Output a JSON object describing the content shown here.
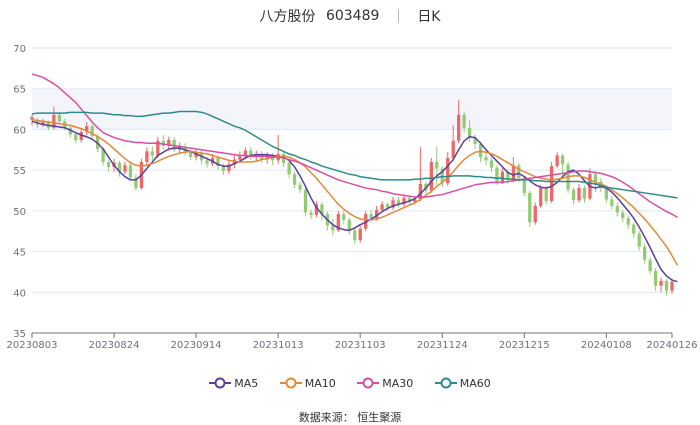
{
  "title": {
    "name": "八方股份",
    "code": "603489",
    "period": "日K"
  },
  "source": "数据来源：  恒生聚源",
  "legend": [
    {
      "key": "ma5",
      "label": "MA5",
      "color": "#5b3e9e"
    },
    {
      "key": "ma10",
      "label": "MA10",
      "color": "#e08a3c"
    },
    {
      "key": "ma30",
      "label": "MA30",
      "color": "#d94da6"
    },
    {
      "key": "ma60",
      "label": "MA60",
      "color": "#2e8b8b"
    }
  ],
  "colors": {
    "up": "#ee6666",
    "down": "#91cc75",
    "grid": "#e0e6f1",
    "band": "#f3f5fb",
    "axis": "#6e7079"
  },
  "chart_data": {
    "type": "candlestick",
    "x_tick_labels": [
      "20230803",
      "20230824",
      "20230914",
      "20231013",
      "20231103",
      "20231124",
      "20231215",
      "20240108",
      "20240126"
    ],
    "x_tick_index": [
      0,
      15,
      30,
      45,
      60,
      75,
      90,
      105,
      117
    ],
    "y_ticks": [
      35,
      40,
      45,
      50,
      55,
      60,
      65,
      70
    ],
    "ylim": [
      35,
      70
    ],
    "candles": [
      [
        61.2,
        61.5,
        60.5,
        61.8
      ],
      [
        61.0,
        60.6,
        60.2,
        61.4
      ],
      [
        60.6,
        60.9,
        60.3,
        61.3
      ],
      [
        60.9,
        60.2,
        59.9,
        61.1
      ],
      [
        60.2,
        61.8,
        60.0,
        62.8
      ],
      [
        61.8,
        61.0,
        60.6,
        62.2
      ],
      [
        61.0,
        60.2,
        59.9,
        61.3
      ],
      [
        60.2,
        59.4,
        59.0,
        60.5
      ],
      [
        59.4,
        58.7,
        58.3,
        59.6
      ],
      [
        58.7,
        59.7,
        58.4,
        60.1
      ],
      [
        59.7,
        60.4,
        59.3,
        60.9
      ],
      [
        60.4,
        59.2,
        58.8,
        60.6
      ],
      [
        59.2,
        57.6,
        57.2,
        59.4
      ],
      [
        57.6,
        56.0,
        55.6,
        57.8
      ],
      [
        56.0,
        55.4,
        54.8,
        56.2
      ],
      [
        55.4,
        55.9,
        54.8,
        56.4
      ],
      [
        55.9,
        54.8,
        54.2,
        56.1
      ],
      [
        54.8,
        55.6,
        54.5,
        56.0
      ],
      [
        55.6,
        54.1,
        53.9,
        56.1
      ],
      [
        54.1,
        52.8,
        52.5,
        54.5
      ],
      [
        52.8,
        56.0,
        52.6,
        56.4
      ],
      [
        56.0,
        57.3,
        55.6,
        57.8
      ],
      [
        57.3,
        56.8,
        56.2,
        57.9
      ],
      [
        56.8,
        58.6,
        56.5,
        59.1
      ],
      [
        58.6,
        58.0,
        57.5,
        59.3
      ],
      [
        58.0,
        58.7,
        57.4,
        59.1
      ],
      [
        58.7,
        57.5,
        57.2,
        59.0
      ],
      [
        57.5,
        57.9,
        57.0,
        58.4
      ],
      [
        57.9,
        57.2,
        56.8,
        58.3
      ],
      [
        57.2,
        56.6,
        56.2,
        57.6
      ],
      [
        56.6,
        57.1,
        56.2,
        57.5
      ],
      [
        57.1,
        56.2,
        55.7,
        57.4
      ],
      [
        56.2,
        55.8,
        55.3,
        56.6
      ],
      [
        55.8,
        56.5,
        55.5,
        57.0
      ],
      [
        56.5,
        55.5,
        55.0,
        56.8
      ],
      [
        55.5,
        54.9,
        54.4,
        55.8
      ],
      [
        54.9,
        55.7,
        54.5,
        56.2
      ],
      [
        55.7,
        56.3,
        55.2,
        56.8
      ],
      [
        56.3,
        56.7,
        55.9,
        57.3
      ],
      [
        56.7,
        57.4,
        56.3,
        57.8
      ],
      [
        57.4,
        56.6,
        56.2,
        57.8
      ],
      [
        56.6,
        57.0,
        56.1,
        57.4
      ],
      [
        57.0,
        56.3,
        55.9,
        57.3
      ],
      [
        56.3,
        56.8,
        55.8,
        57.2
      ],
      [
        56.8,
        56.2,
        55.6,
        57.1
      ],
      [
        56.2,
        57.0,
        55.8,
        59.3
      ],
      [
        57.0,
        55.9,
        55.4,
        57.3
      ],
      [
        55.9,
        54.5,
        54.0,
        56.1
      ],
      [
        54.5,
        53.2,
        52.8,
        54.8
      ],
      [
        53.2,
        52.6,
        52.2,
        53.6
      ],
      [
        52.6,
        49.8,
        49.4,
        52.9
      ],
      [
        49.8,
        49.5,
        49.0,
        50.2
      ],
      [
        49.5,
        50.8,
        49.2,
        51.2
      ],
      [
        50.8,
        49.6,
        48.8,
        51.1
      ],
      [
        49.6,
        48.2,
        47.6,
        49.9
      ],
      [
        48.2,
        47.6,
        47.0,
        49.0
      ],
      [
        47.6,
        49.6,
        47.4,
        50.0
      ],
      [
        49.6,
        48.9,
        48.4,
        50.0
      ],
      [
        48.9,
        47.6,
        47.1,
        49.2
      ],
      [
        47.6,
        46.4,
        45.9,
        48.0
      ],
      [
        46.4,
        47.8,
        46.1,
        48.2
      ],
      [
        47.8,
        49.6,
        47.5,
        50.0
      ],
      [
        49.6,
        49.1,
        48.6,
        50.1
      ],
      [
        49.1,
        50.1,
        48.8,
        50.6
      ],
      [
        50.1,
        50.8,
        49.8,
        51.2
      ],
      [
        50.8,
        50.4,
        50.0,
        51.0
      ],
      [
        50.4,
        51.3,
        50.1,
        51.7
      ],
      [
        51.3,
        50.8,
        50.4,
        51.7
      ],
      [
        50.8,
        51.6,
        50.5,
        52.0
      ],
      [
        51.6,
        51.1,
        50.8,
        52.0
      ],
      [
        51.1,
        51.4,
        50.8,
        51.7
      ],
      [
        51.4,
        53.3,
        51.2,
        57.8
      ],
      [
        53.3,
        52.5,
        52.1,
        53.6
      ],
      [
        52.5,
        56.0,
        52.2,
        56.5
      ],
      [
        56.0,
        55.2,
        53.0,
        57.9
      ],
      [
        55.2,
        53.4,
        52.9,
        55.5
      ],
      [
        53.4,
        56.5,
        53.1,
        57.2
      ],
      [
        56.5,
        58.6,
        56.1,
        60.5
      ],
      [
        58.6,
        61.8,
        58.3,
        63.6
      ],
      [
        61.8,
        60.2,
        59.6,
        62.2
      ],
      [
        60.2,
        59.0,
        58.5,
        61.2
      ],
      [
        59.0,
        58.2,
        57.6,
        59.4
      ],
      [
        58.2,
        56.6,
        56.0,
        58.5
      ],
      [
        56.6,
        56.2,
        55.6,
        57.2
      ],
      [
        56.2,
        55.3,
        54.8,
        56.5
      ],
      [
        55.3,
        53.6,
        53.2,
        55.6
      ],
      [
        53.6,
        54.8,
        53.3,
        55.2
      ],
      [
        54.8,
        53.8,
        53.3,
        55.1
      ],
      [
        53.8,
        55.6,
        53.5,
        56.6
      ],
      [
        55.6,
        54.0,
        53.5,
        55.9
      ],
      [
        54.0,
        52.2,
        51.8,
        54.3
      ],
      [
        52.2,
        48.6,
        48.0,
        52.5
      ],
      [
        48.6,
        50.6,
        48.3,
        51.0
      ],
      [
        50.6,
        52.8,
        50.3,
        53.2
      ],
      [
        52.8,
        51.2,
        50.8,
        53.1
      ],
      [
        51.2,
        55.5,
        51.0,
        56.0
      ],
      [
        55.5,
        56.8,
        55.2,
        57.2
      ],
      [
        56.8,
        55.7,
        54.3,
        57.0
      ],
      [
        55.7,
        52.6,
        52.2,
        56.0
      ],
      [
        52.6,
        51.3,
        50.8,
        52.9
      ],
      [
        51.3,
        52.8,
        51.0,
        53.3
      ],
      [
        52.8,
        51.5,
        51.0,
        53.1
      ],
      [
        51.5,
        54.5,
        51.3,
        55.2
      ],
      [
        54.5,
        53.6,
        52.3,
        54.9
      ],
      [
        53.6,
        52.8,
        52.3,
        54.0
      ],
      [
        52.8,
        51.4,
        51.0,
        53.1
      ],
      [
        51.4,
        50.6,
        50.2,
        51.8
      ],
      [
        50.6,
        49.8,
        49.3,
        51.0
      ],
      [
        49.8,
        49.1,
        48.6,
        50.1
      ],
      [
        49.1,
        48.3,
        47.8,
        49.4
      ],
      [
        48.3,
        47.2,
        46.7,
        48.6
      ],
      [
        47.2,
        45.6,
        45.1,
        47.5
      ],
      [
        45.6,
        44.0,
        43.5,
        46.0
      ],
      [
        44.0,
        42.6,
        42.2,
        44.3
      ],
      [
        42.6,
        40.8,
        40.2,
        43.0
      ],
      [
        40.8,
        41.4,
        40.0,
        41.8
      ],
      [
        41.4,
        40.2,
        39.6,
        41.6
      ],
      [
        40.2,
        41.3,
        39.8,
        41.7
      ]
    ],
    "series": [
      {
        "name": "MA5",
        "values": [
          61.0,
          60.8,
          60.6,
          60.5,
          60.4,
          60.3,
          60.2,
          59.9,
          59.6,
          59.3,
          59.1,
          58.8,
          58.3,
          57.6,
          56.6,
          55.6,
          54.8,
          54.2,
          53.8,
          53.8,
          54.4,
          55.2,
          56.0,
          56.8,
          57.2,
          57.6,
          57.7,
          57.7,
          57.5,
          57.3,
          57.0,
          56.7,
          56.4,
          56.1,
          55.7,
          55.5,
          55.5,
          55.8,
          56.1,
          56.5,
          56.8,
          56.9,
          56.9,
          56.9,
          56.8,
          56.7,
          56.6,
          56.2,
          55.4,
          54.3,
          53.0,
          51.6,
          50.4,
          49.6,
          48.9,
          48.3,
          47.9,
          47.7,
          47.6,
          47.9,
          48.3,
          48.6,
          49.0,
          49.4,
          49.9,
          50.3,
          50.6,
          50.8,
          51.0,
          51.2,
          51.5,
          52.1,
          52.8,
          53.6,
          54.3,
          54.8,
          55.5,
          56.3,
          57.5,
          58.6,
          59.1,
          59.0,
          58.3,
          57.5,
          56.8,
          56.1,
          55.4,
          54.7,
          54.4,
          54.6,
          54.2,
          53.7,
          53.2,
          52.9,
          52.8,
          53.0,
          53.5,
          54.2,
          54.8,
          55.0,
          54.5,
          53.7,
          53.0,
          52.8,
          53.0,
          52.8,
          52.3,
          51.6,
          50.8,
          50.0,
          49.1,
          48.0,
          46.8,
          45.5,
          44.1,
          42.8,
          42.0,
          41.5,
          41.3
        ]
      },
      {
        "name": "MA10",
        "values": [
          61.2,
          61.1,
          61.0,
          60.9,
          60.8,
          60.7,
          60.6,
          60.5,
          60.3,
          60.1,
          59.8,
          59.5,
          59.1,
          58.7,
          58.2,
          57.6,
          57.0,
          56.4,
          55.9,
          55.6,
          55.5,
          55.6,
          55.8,
          56.1,
          56.4,
          56.7,
          56.9,
          57.1,
          57.2,
          57.3,
          57.2,
          57.1,
          57.0,
          56.8,
          56.6,
          56.4,
          56.2,
          56.1,
          56.0,
          56.0,
          56.0,
          56.1,
          56.3,
          56.4,
          56.6,
          56.7,
          56.7,
          56.6,
          56.3,
          55.9,
          55.4,
          54.7,
          54.0,
          53.2,
          52.4,
          51.6,
          50.8,
          50.2,
          49.7,
          49.3,
          49.0,
          48.9,
          48.9,
          49.0,
          49.2,
          49.5,
          49.8,
          50.1,
          50.4,
          50.7,
          51.0,
          51.4,
          51.9,
          52.4,
          53.0,
          53.5,
          54.1,
          54.8,
          55.6,
          56.3,
          56.8,
          57.2,
          57.3,
          57.2,
          57.0,
          56.7,
          56.3,
          55.9,
          55.5,
          55.1,
          54.8,
          54.5,
          54.2,
          54.0,
          53.9,
          53.8,
          53.9,
          54.0,
          54.2,
          54.3,
          54.3,
          54.1,
          53.8,
          53.5,
          53.3,
          53.0,
          52.6,
          52.1,
          51.6,
          51.0,
          50.4,
          49.7,
          49.0,
          48.2,
          47.4,
          46.5,
          45.6,
          44.5,
          43.3
        ]
      },
      {
        "name": "MA30",
        "values": [
          66.8,
          66.6,
          66.4,
          66.0,
          65.6,
          65.1,
          64.5,
          63.9,
          63.3,
          62.5,
          61.7,
          60.9,
          60.2,
          59.6,
          59.3,
          59.0,
          58.8,
          58.6,
          58.5,
          58.4,
          58.4,
          58.3,
          58.3,
          58.3,
          58.2,
          58.1,
          58.0,
          57.9,
          57.8,
          57.7,
          57.6,
          57.5,
          57.4,
          57.3,
          57.2,
          57.1,
          57.0,
          56.9,
          56.8,
          56.8,
          56.7,
          56.7,
          56.7,
          56.7,
          56.6,
          56.6,
          56.5,
          56.3,
          56.1,
          55.9,
          55.6,
          55.3,
          55.0,
          54.7,
          54.4,
          54.1,
          53.8,
          53.6,
          53.4,
          53.2,
          53.0,
          52.8,
          52.7,
          52.6,
          52.4,
          52.3,
          52.1,
          52.0,
          51.9,
          51.8,
          51.7,
          51.7,
          51.7,
          51.8,
          51.9,
          52.0,
          52.2,
          52.4,
          52.6,
          52.8,
          53.0,
          53.2,
          53.3,
          53.4,
          53.5,
          53.5,
          53.5,
          53.6,
          53.7,
          53.8,
          53.9,
          54.0,
          54.1,
          54.2,
          54.3,
          54.4,
          54.5,
          54.6,
          54.7,
          54.8,
          54.9,
          54.9,
          54.8,
          54.7,
          54.6,
          54.4,
          54.2,
          53.9,
          53.5,
          53.1,
          52.6,
          52.1,
          51.6,
          51.1,
          50.7,
          50.3,
          49.9,
          49.6,
          49.2
        ]
      },
      {
        "name": "MA60",
        "values": [
          61.9,
          62.0,
          62.0,
          62.0,
          62.0,
          62.0,
          62.0,
          62.1,
          62.1,
          62.1,
          62.1,
          62.0,
          62.0,
          62.0,
          61.9,
          61.8,
          61.8,
          61.7,
          61.7,
          61.6,
          61.6,
          61.7,
          61.8,
          61.9,
          62.0,
          62.0,
          62.1,
          62.2,
          62.2,
          62.2,
          62.2,
          62.1,
          61.9,
          61.6,
          61.3,
          61.0,
          60.7,
          60.4,
          60.2,
          59.9,
          59.5,
          59.1,
          58.7,
          58.3,
          57.9,
          57.6,
          57.3,
          57.0,
          56.8,
          56.5,
          56.3,
          56.0,
          55.8,
          55.5,
          55.3,
          55.1,
          54.9,
          54.7,
          54.5,
          54.4,
          54.2,
          54.1,
          54.0,
          53.9,
          53.8,
          53.8,
          53.8,
          53.8,
          53.8,
          53.8,
          53.9,
          53.9,
          54.0,
          54.0,
          54.1,
          54.2,
          54.2,
          54.3,
          54.3,
          54.3,
          54.3,
          54.2,
          54.2,
          54.1,
          54.1,
          54.0,
          54.0,
          53.9,
          53.9,
          53.8,
          53.8,
          53.8,
          53.7,
          53.7,
          53.6,
          53.6,
          53.6,
          53.6,
          53.6,
          53.6,
          53.6,
          53.5,
          53.4,
          53.3,
          53.1,
          52.9,
          52.8,
          52.7,
          52.6,
          52.5,
          52.4,
          52.3,
          52.2,
          52.1,
          52.0,
          51.9,
          51.8,
          51.7,
          51.6
        ]
      }
    ]
  }
}
